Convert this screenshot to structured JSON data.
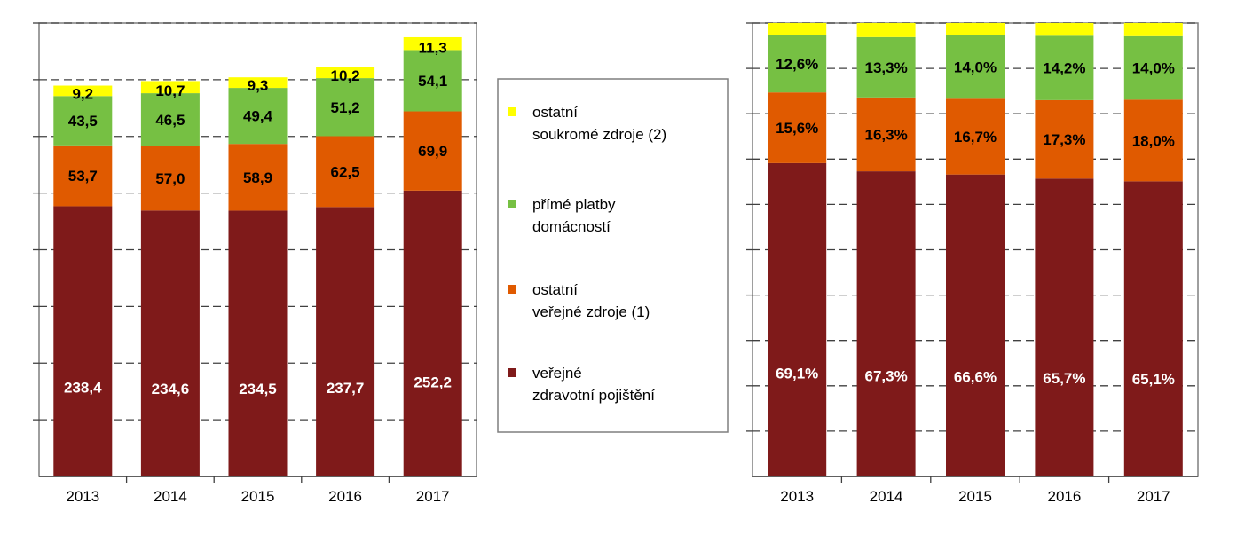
{
  "chart_data": [
    {
      "type": "bar",
      "stacked": true,
      "categories": [
        "2013",
        "2014",
        "2015",
        "2016",
        "2017"
      ],
      "ylim": [
        0,
        400
      ],
      "grid": true,
      "series": [
        {
          "name": "veřejné zdravotní pojištění",
          "color": "#7f1a1a",
          "values": [
            238.4,
            234.6,
            234.5,
            237.7,
            252.2
          ],
          "labels": [
            "238,4",
            "234,6",
            "234,5",
            "237,7",
            "252,2"
          ],
          "label_color": "#ffffff"
        },
        {
          "name": "ostatní veřejné zdroje (1)",
          "color": "#e05a00",
          "values": [
            53.7,
            57.0,
            58.9,
            62.5,
            69.9
          ],
          "labels": [
            "53,7",
            "57,0",
            "58,9",
            "62,5",
            "69,9"
          ],
          "label_color": "#000000"
        },
        {
          "name": "přímé platby domácností",
          "color": "#76c043",
          "values": [
            43.5,
            46.5,
            49.4,
            51.2,
            54.1
          ],
          "labels": [
            "43,5",
            "46,5",
            "49,4",
            "51,2",
            "54,1"
          ],
          "label_color": "#000000"
        },
        {
          "name": "ostatní soukromé zdroje (2)",
          "color": "#ffff00",
          "values": [
            9.2,
            10.7,
            9.3,
            10.2,
            11.3
          ],
          "labels": [
            "9,2",
            "10,7",
            "9,3",
            "10,2",
            "11,3"
          ],
          "label_color": "#000000"
        }
      ]
    },
    {
      "type": "bar",
      "stacked": true,
      "percent": true,
      "categories": [
        "2013",
        "2014",
        "2015",
        "2016",
        "2017"
      ],
      "ylim": [
        0,
        100
      ],
      "grid": true,
      "series": [
        {
          "name": "veřejné zdravotní pojištění",
          "color": "#7f1a1a",
          "values": [
            69.1,
            67.3,
            66.6,
            65.7,
            65.1
          ],
          "labels": [
            "69,1%",
            "67,3%",
            "66,6%",
            "65,7%",
            "65,1%"
          ],
          "label_color": "#ffffff"
        },
        {
          "name": "ostatní veřejné zdroje (1)",
          "color": "#e05a00",
          "values": [
            15.6,
            16.3,
            16.7,
            17.3,
            18.0
          ],
          "labels": [
            "15,6%",
            "16,3%",
            "16,7%",
            "17,3%",
            "18,0%"
          ],
          "label_color": "#000000"
        },
        {
          "name": "přímé platby domácností",
          "color": "#76c043",
          "values": [
            12.6,
            13.3,
            14.0,
            14.2,
            14.0
          ],
          "labels": [
            "12,6%",
            "13,3%",
            "14,0%",
            "14,2%",
            "14,0%"
          ],
          "label_color": "#000000"
        },
        {
          "name": "ostatní soukromé zdroje (2)",
          "color": "#ffff00",
          "values": [
            2.7,
            3.1,
            2.7,
            2.8,
            2.9
          ],
          "labels": [
            "",
            "",
            "",
            "",
            ""
          ],
          "label_color": "#000000"
        }
      ]
    }
  ],
  "legend": {
    "items": [
      {
        "lines": [
          "ostatní",
          "soukromé zdroje (2)"
        ],
        "color": "#ffff00"
      },
      {
        "lines": [
          "přímé platby",
          "domácností"
        ],
        "color": "#76c043"
      },
      {
        "lines": [
          "ostatní",
          "veřejné zdroje (1)"
        ],
        "color": "#e05a00"
      },
      {
        "lines": [
          "veřejné",
          "zdravotní pojištění"
        ],
        "color": "#7f1a1a"
      }
    ]
  }
}
